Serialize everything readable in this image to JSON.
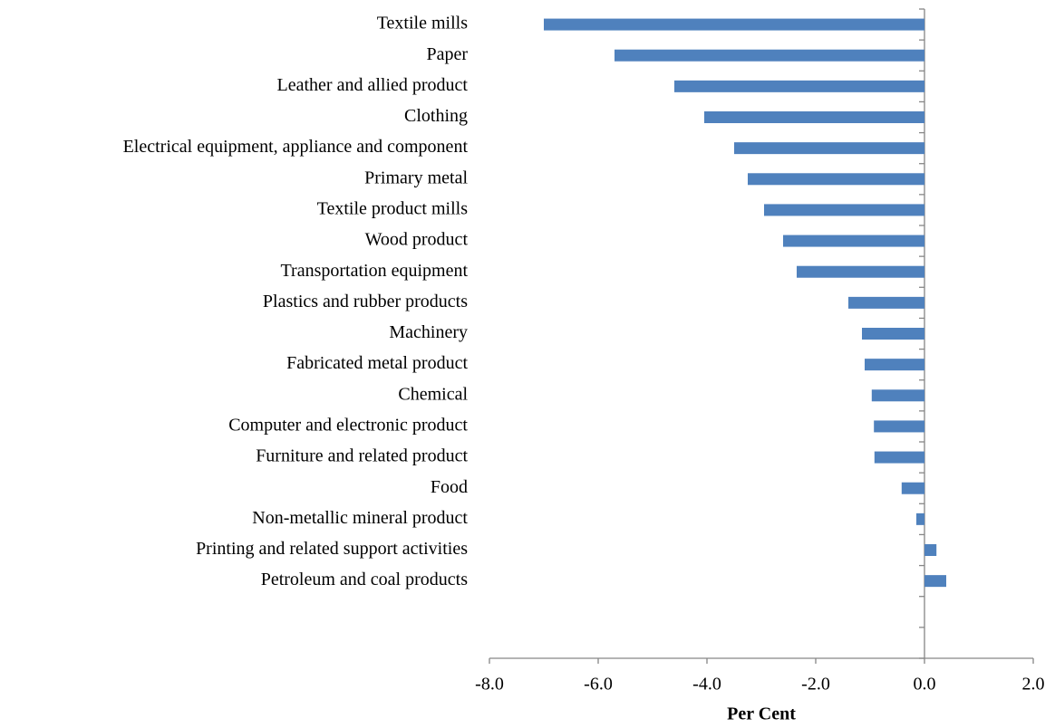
{
  "chart_data": {
    "type": "bar",
    "orientation": "horizontal",
    "x_label": "Per Cent",
    "categories": [
      "Textile mills",
      "Paper",
      "Leather and allied product",
      "Clothing",
      "Electrical equipment, appliance and component",
      "Primary metal",
      "Textile product mills",
      "Wood product",
      "Transportation equipment",
      "Plastics and rubber products",
      "Machinery",
      "Fabricated metal product",
      "Chemical",
      "Computer and electronic product",
      "Furniture and related product",
      "Food",
      "Non-metallic mineral product",
      "Printing and related support activities",
      "Petroleum and coal products",
      null,
      null
    ],
    "values": [
      -7.0,
      -5.7,
      -4.6,
      -4.05,
      -3.5,
      -3.25,
      -2.95,
      -2.6,
      -2.35,
      -1.4,
      -1.15,
      -1.1,
      -0.97,
      -0.93,
      -0.92,
      -0.42,
      -0.15,
      0.22,
      0.4,
      null,
      null
    ],
    "color": "#4f81bd",
    "xlim": [
      -8,
      2
    ],
    "xticks": [
      {
        "value": -8,
        "label": "-8.0"
      },
      {
        "value": -6,
        "label": "-6.0"
      },
      {
        "value": -4,
        "label": "-4.0"
      },
      {
        "value": -2,
        "label": "-2.0"
      },
      {
        "value": 0,
        "label": "0.0"
      },
      {
        "value": 2,
        "label": "2.0"
      }
    ],
    "grid": false
  }
}
